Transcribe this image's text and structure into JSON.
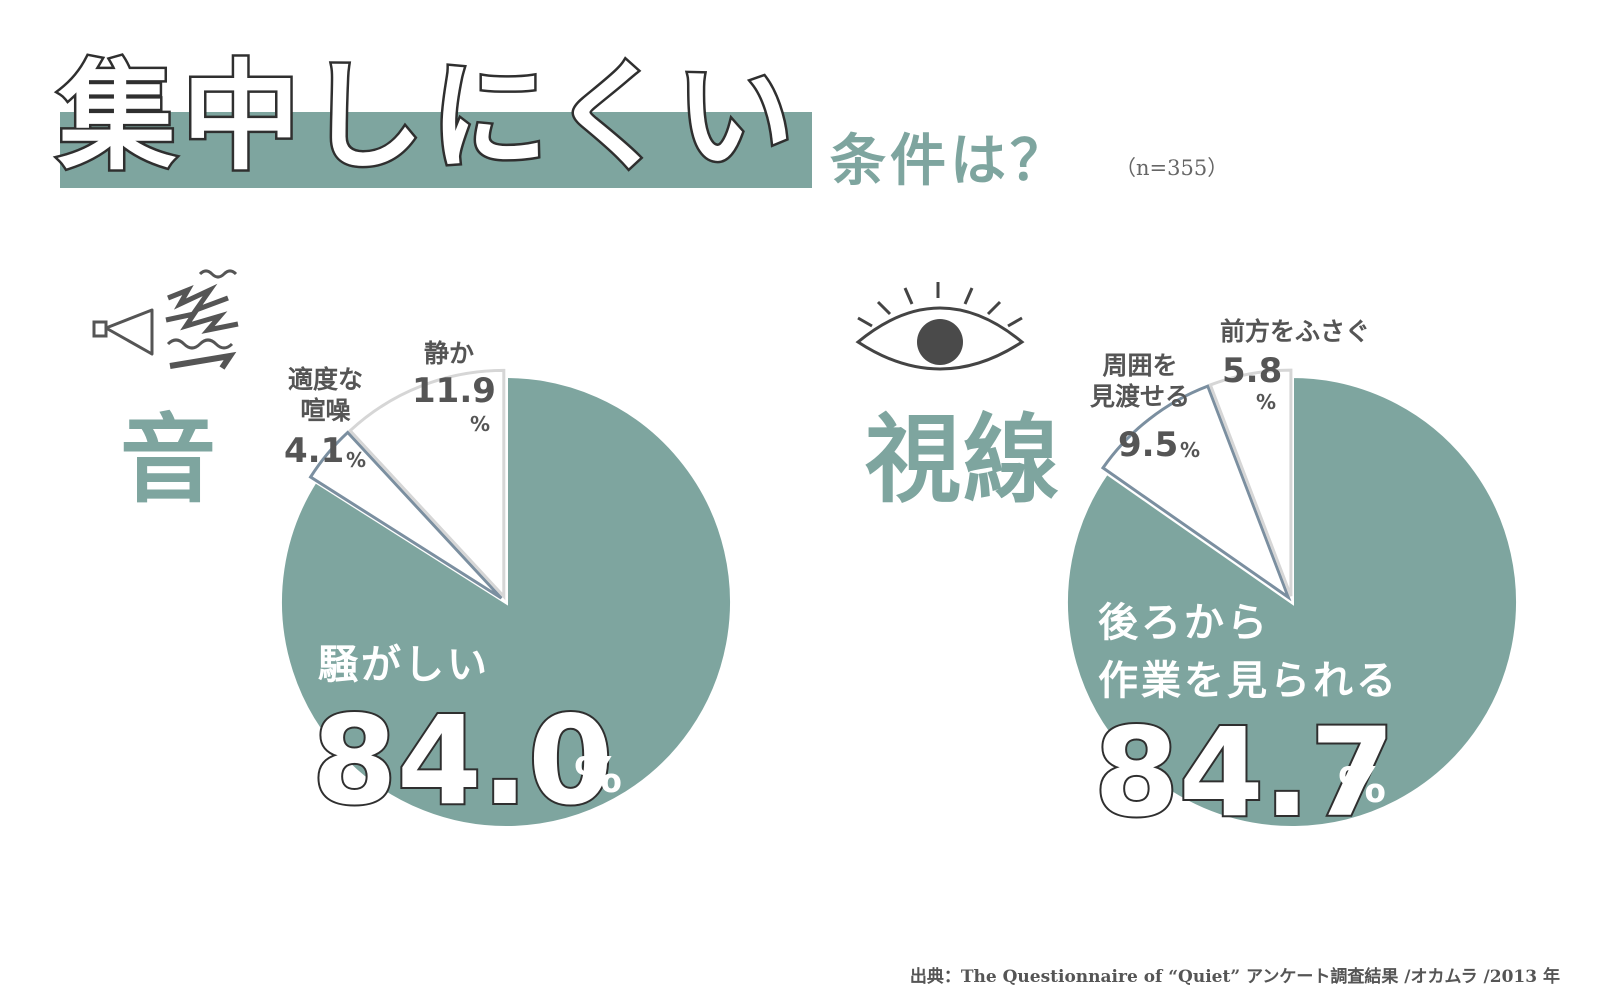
{
  "title": {
    "main": "集中しにくい",
    "sub": "条件は？",
    "n": "（n=355）"
  },
  "source": "出典：The Questionnaire of “Quiet” アンケート調査結果 /オカムラ /2013 年",
  "colors": {
    "accent": "#7ea59f",
    "outline": "#7b8fa0",
    "text": "#555555",
    "white": "#ffffff"
  },
  "icons": {
    "sound": "megaphone-noise-icon",
    "sight": "eye-icon"
  },
  "chart_data": [
    {
      "type": "pie",
      "title": "音",
      "slices": [
        {
          "label": "騒がしい",
          "value": 84.0,
          "display": "84.0",
          "unit": "%"
        },
        {
          "label": "適度な喧噪",
          "label_lines": [
            "適度な",
            "喧噪"
          ],
          "value": 4.1,
          "display": "4.1",
          "unit": "%"
        },
        {
          "label": "静か",
          "value": 11.9,
          "display": "11.9",
          "unit": "%"
        }
      ]
    },
    {
      "type": "pie",
      "title": "視線",
      "slices": [
        {
          "label": "後ろから作業を見られる",
          "label_lines": [
            "後ろから",
            "作業を見られる"
          ],
          "value": 84.7,
          "display": "84.7",
          "unit": "%"
        },
        {
          "label": "周囲を見渡せる",
          "label_lines": [
            "周囲を",
            "見渡せる"
          ],
          "value": 9.5,
          "display": "9.5",
          "unit": "%"
        },
        {
          "label": "前方をふさぐ",
          "value": 5.8,
          "display": "5.8",
          "unit": "%"
        }
      ]
    }
  ]
}
